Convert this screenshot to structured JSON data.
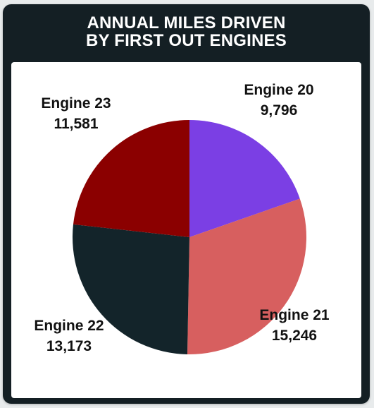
{
  "header": {
    "title_line1": "ANNUAL MILES DRIVEN",
    "title_line2": "BY FIRST OUT ENGINES"
  },
  "colors": {
    "card_bg": "#141f24",
    "panel_bg": "#ffffff"
  },
  "chart_data": {
    "type": "pie",
    "title": "ANNUAL MILES DRIVEN BY FIRST OUT ENGINES",
    "start_angle_deg": 0,
    "direction": "clockwise",
    "slices": [
      {
        "label": "Engine 20",
        "value": 9796,
        "display": "9,796",
        "color": "#7b3fe4"
      },
      {
        "label": "Engine 21",
        "value": 15246,
        "display": "15,246",
        "color": "#d75f5f"
      },
      {
        "label": "Engine 22",
        "value": 13173,
        "display": "13,173",
        "color": "#13242a"
      },
      {
        "label": "Engine 23",
        "value": 11581,
        "display": "11,581",
        "color": "#8b0000"
      }
    ],
    "legend": "none",
    "labels": "outside, name above value"
  }
}
